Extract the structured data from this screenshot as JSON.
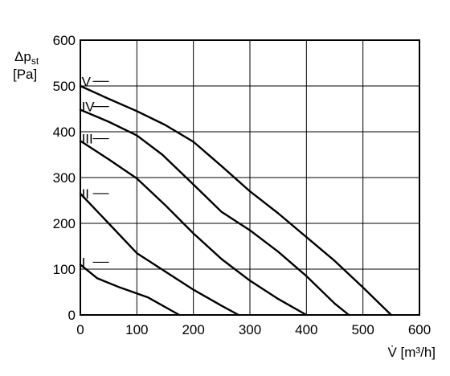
{
  "chart_data": {
    "type": "line",
    "title": "",
    "xlabel": "V̇ [m³/h]",
    "ylabel": "Δp",
    "ylabel_sub": "st",
    "ylabel_unit": "[Pa]",
    "xlim": [
      0,
      600
    ],
    "ylim": [
      0,
      600
    ],
    "x_ticks": [
      0,
      100,
      200,
      300,
      400,
      500,
      600
    ],
    "y_ticks": [
      0,
      100,
      200,
      300,
      400,
      500,
      600
    ],
    "grid": true,
    "series": [
      {
        "name": "I",
        "label_at": [
          25,
          115
        ],
        "points": [
          [
            0,
            110
          ],
          [
            30,
            80
          ],
          [
            70,
            60
          ],
          [
            120,
            38
          ],
          [
            175,
            0
          ]
        ]
      },
      {
        "name": "II",
        "label_at": [
          25,
          265
        ],
        "points": [
          [
            0,
            265
          ],
          [
            50,
            200
          ],
          [
            100,
            135
          ],
          [
            150,
            95
          ],
          [
            200,
            55
          ],
          [
            250,
            20
          ],
          [
            280,
            0
          ]
        ]
      },
      {
        "name": "III",
        "label_at": [
          25,
          385
        ],
        "points": [
          [
            0,
            380
          ],
          [
            50,
            340
          ],
          [
            100,
            298
          ],
          [
            150,
            240
          ],
          [
            200,
            178
          ],
          [
            250,
            122
          ],
          [
            300,
            75
          ],
          [
            350,
            35
          ],
          [
            400,
            0
          ]
        ]
      },
      {
        "name": "IV",
        "label_at": [
          25,
          455
        ],
        "points": [
          [
            0,
            448
          ],
          [
            50,
            422
          ],
          [
            100,
            392
          ],
          [
            145,
            350
          ],
          [
            200,
            285
          ],
          [
            250,
            225
          ],
          [
            300,
            185
          ],
          [
            350,
            138
          ],
          [
            400,
            85
          ],
          [
            450,
            25
          ],
          [
            475,
            0
          ]
        ]
      },
      {
        "name": "V",
        "label_at": [
          25,
          510
        ],
        "points": [
          [
            0,
            500
          ],
          [
            50,
            472
          ],
          [
            100,
            445
          ],
          [
            150,
            415
          ],
          [
            200,
            378
          ],
          [
            250,
            325
          ],
          [
            300,
            270
          ],
          [
            350,
            222
          ],
          [
            400,
            170
          ],
          [
            450,
            118
          ],
          [
            500,
            60
          ],
          [
            550,
            0
          ]
        ]
      }
    ]
  }
}
